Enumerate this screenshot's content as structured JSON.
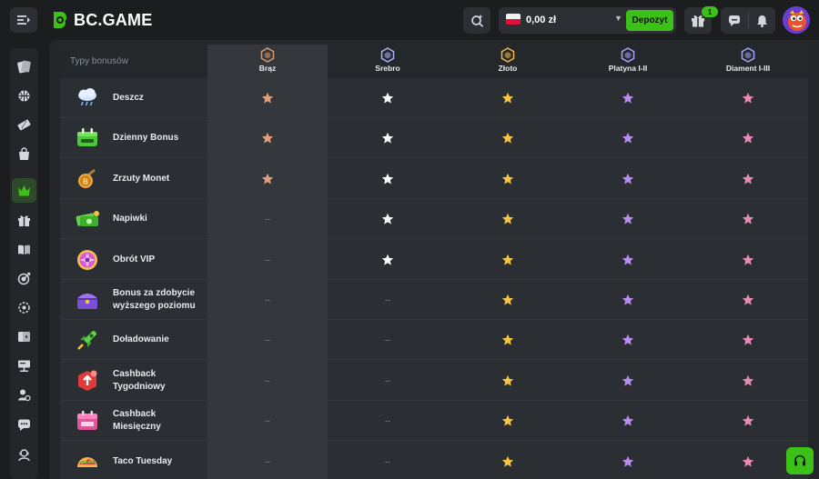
{
  "header": {
    "logo_text": "BC.GAME",
    "balance": "0,00 zł",
    "deposit_label": "Depozyt",
    "gift_count": "1"
  },
  "icons": {
    "menu": "menu-icon",
    "search": "search-icon",
    "gift": "gift-icon",
    "chat": "chat-icon",
    "notification": "bell-icon",
    "support": "headset-icon"
  },
  "colors": {
    "accent": "#3bc117",
    "bronze": "#e0a07a",
    "silver": "#ffffff",
    "gold": "#f5c542",
    "platinum": "#b88cf0",
    "diamond": "#e68ab8"
  },
  "table": {
    "header_label": "Typy bonusów",
    "tiers": [
      {
        "name": "Brąz",
        "color": "#d9996f"
      },
      {
        "name": "Srebro",
        "color": "#aab0ff"
      },
      {
        "name": "Złoto",
        "color": "#f2b84b"
      },
      {
        "name": "Platyna I-II",
        "color": "#b0a0ff"
      },
      {
        "name": "Diament I-III",
        "color": "#a8a0ff"
      }
    ],
    "rows": [
      {
        "label": "Deszcz",
        "icon": "rain-cloud-icon",
        "tiers": [
          true,
          true,
          true,
          true,
          true
        ]
      },
      {
        "label": "Dzienny Bonus",
        "icon": "daily-bonus-icon",
        "tiers": [
          true,
          true,
          true,
          true,
          true
        ]
      },
      {
        "label": "Zrzuty Monet",
        "icon": "coin-drop-icon",
        "tiers": [
          true,
          true,
          true,
          true,
          true
        ]
      },
      {
        "label": "Napiwki",
        "icon": "money-tips-icon",
        "tiers": [
          false,
          true,
          true,
          true,
          true
        ]
      },
      {
        "label": "Obrót VIP",
        "icon": "vip-spin-icon",
        "tiers": [
          false,
          true,
          true,
          true,
          true
        ]
      },
      {
        "label": "Bonus za zdobycie wyższego poziomu",
        "icon": "level-up-chest-icon",
        "tiers": [
          false,
          false,
          true,
          true,
          true
        ]
      },
      {
        "label": "Doładowanie",
        "icon": "recharge-rocket-icon",
        "tiers": [
          false,
          false,
          true,
          true,
          true
        ]
      },
      {
        "label": "Cashback Tygodniowy",
        "icon": "weekly-cashback-icon",
        "tiers": [
          false,
          false,
          true,
          true,
          true
        ]
      },
      {
        "label": "Cashback Miesięczny",
        "icon": "monthly-cashback-icon",
        "tiers": [
          false,
          false,
          true,
          true,
          true
        ]
      },
      {
        "label": "Taco Tuesday",
        "icon": "taco-icon",
        "tiers": [
          false,
          false,
          true,
          true,
          true
        ]
      }
    ],
    "dash": "--"
  },
  "sidebar": {
    "items": [
      {
        "name": "casino-icon"
      },
      {
        "name": "sports-icon"
      },
      {
        "name": "lottery-icon"
      },
      {
        "name": "shop-icon"
      },
      {
        "name": "vip-crown-icon",
        "active": true
      },
      {
        "name": "promotions-gift-icon"
      },
      {
        "name": "book-icon"
      },
      {
        "name": "target-icon"
      },
      {
        "name": "spinner-icon"
      },
      {
        "name": "cards-icon"
      },
      {
        "name": "forum-icon"
      },
      {
        "name": "users-icon"
      },
      {
        "name": "chat-bubble-icon"
      },
      {
        "name": "support-agent-icon"
      }
    ]
  }
}
